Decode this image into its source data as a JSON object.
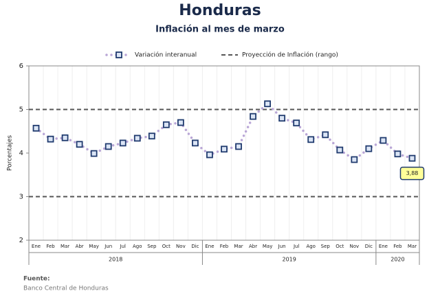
{
  "chart_data": {
    "type": "line",
    "title": "Honduras",
    "subtitle": "Inflación al mes de marzo",
    "y_label": "Porcentajes",
    "groups": [
      {
        "label": "2018",
        "categories": [
          "Ene",
          "Feb",
          "Mar",
          "Abr",
          "May",
          "Jun",
          "Jul",
          "Ago",
          "Sep",
          "Oct",
          "Nov",
          "Dic"
        ]
      },
      {
        "label": "2019",
        "categories": [
          "Ene",
          "Feb",
          "Mar",
          "Abr",
          "May",
          "Jun",
          "Jul",
          "Ago",
          "Sep",
          "Oct",
          "Nov",
          "Dic"
        ]
      },
      {
        "label": "2020",
        "categories": [
          "Ene",
          "Feb",
          "Mar"
        ]
      }
    ],
    "series": [
      {
        "name": "Variación interanual",
        "color": "#1f3a6e",
        "line_color": "#b9a6d6",
        "values": [
          4.57,
          4.32,
          4.35,
          4.2,
          3.99,
          4.15,
          4.23,
          4.34,
          4.39,
          4.65,
          4.7,
          4.23,
          3.96,
          4.09,
          4.15,
          4.84,
          5.13,
          4.8,
          4.69,
          4.31,
          4.42,
          4.07,
          3.85,
          4.1,
          4.29,
          3.98,
          3.88
        ],
        "value_labels": {
          "26": "3,88"
        }
      }
    ],
    "projection": {
      "name": "Proyección de Inflación (rango)",
      "range": [
        3,
        5
      ],
      "color": "#555555"
    },
    "ylim": [
      2,
      6
    ],
    "yticks": [
      2,
      3,
      4,
      5,
      6
    ],
    "source_title": "Fuente:",
    "source": "Banco Central de Honduras"
  }
}
